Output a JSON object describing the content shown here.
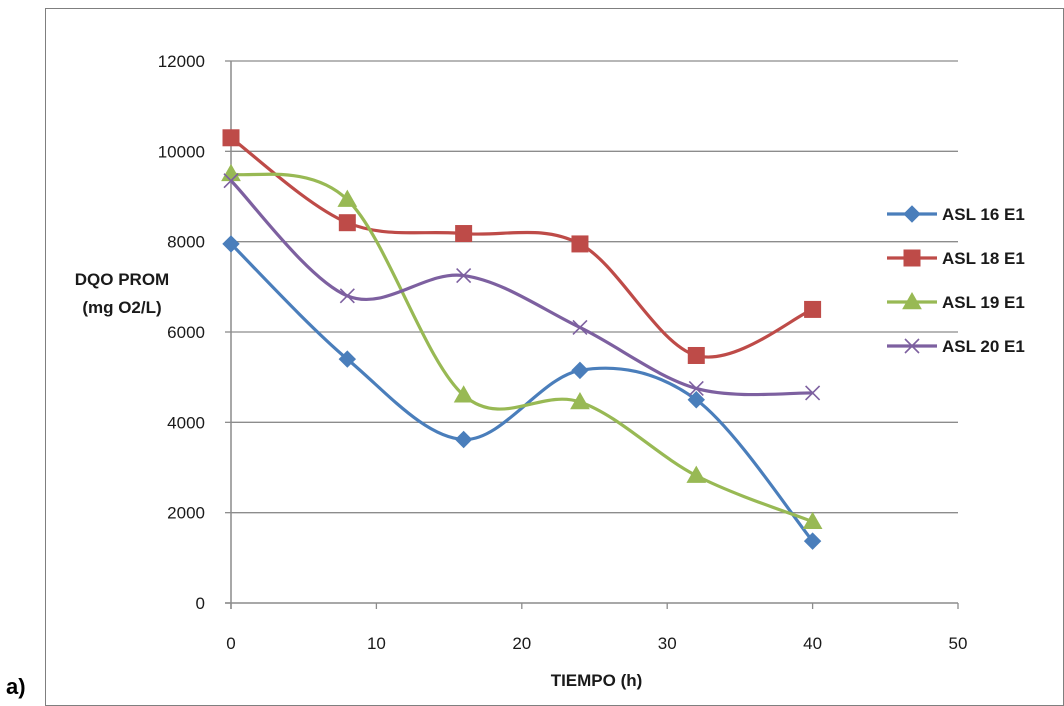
{
  "panel_label": "a)",
  "chart_data": {
    "type": "line",
    "smoothed": true,
    "xlabel": "TIEMPO (h)",
    "ylabel": [
      "DQO PROM",
      "(mg O2/L)"
    ],
    "xlim": [
      0,
      50
    ],
    "ylim": [
      0,
      12000
    ],
    "x_ticks": [
      0,
      10,
      20,
      30,
      40,
      50
    ],
    "y_ticks": [
      0,
      2000,
      4000,
      6000,
      8000,
      10000,
      12000
    ],
    "grid": "horizontal",
    "legend_position": "right",
    "x": [
      0,
      8,
      16,
      24,
      32,
      40
    ],
    "series": [
      {
        "name": "ASL 16 E1",
        "color": "#4a7ebb",
        "marker": "diamond",
        "values": [
          7950,
          5400,
          3620,
          5150,
          4500,
          1370
        ]
      },
      {
        "name": "ASL 18 E1",
        "color": "#be4b48",
        "marker": "square",
        "values": [
          10300,
          8420,
          8180,
          7950,
          5480,
          6500
        ]
      },
      {
        "name": "ASL 19 E1",
        "color": "#98b954",
        "marker": "triangle",
        "values": [
          9500,
          8930,
          4600,
          4450,
          2820,
          1800
        ]
      },
      {
        "name": "ASL 20 E1",
        "color": "#7d60a0",
        "marker": "x",
        "values": [
          9350,
          6800,
          7250,
          6100,
          4750,
          4650
        ]
      }
    ]
  }
}
